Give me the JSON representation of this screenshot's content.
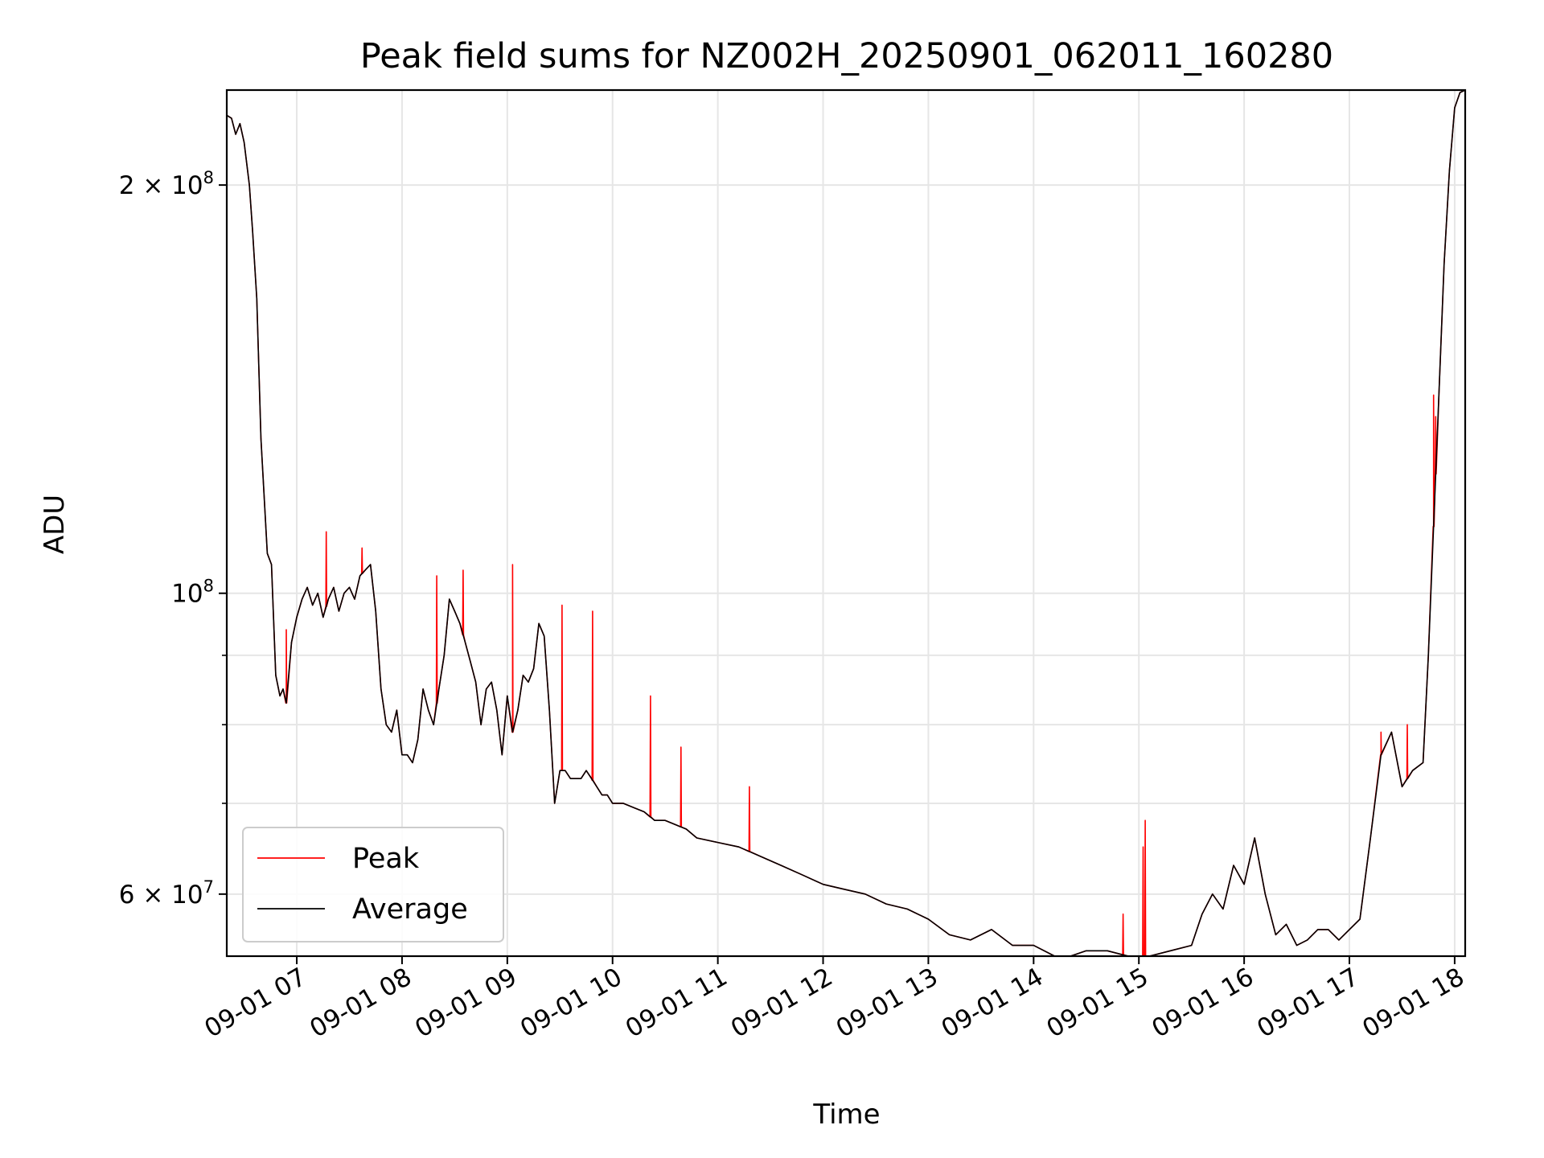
{
  "chart_data": {
    "type": "line",
    "title": "Peak field sums for NZ002H_20250901_062011_160280",
    "xlabel": "Time",
    "ylabel": "ADU",
    "yscale": "log",
    "xlim": [
      6.335,
      18.1
    ],
    "ylim": [
      54000000,
      235000000
    ],
    "grid": true,
    "x_tick_labels": [
      "09-01 07",
      "09-01 08",
      "09-01 09",
      "09-01 10",
      "09-01 11",
      "09-01 12",
      "09-01 13",
      "09-01 14",
      "09-01 15",
      "09-01 16",
      "09-01 17",
      "09-01 18"
    ],
    "x_tick_hours": [
      7,
      8,
      9,
      10,
      11,
      12,
      13,
      14,
      15,
      16,
      17,
      18
    ],
    "y_major_ticks": [
      {
        "value": 60000000,
        "mantissa": "6",
        "exponent": "7"
      },
      {
        "value": 100000000,
        "mantissa": "",
        "exponent": "8"
      },
      {
        "value": 200000000,
        "mantissa": "2",
        "exponent": "8"
      }
    ],
    "y_minor_ticks": [
      70000000,
      80000000,
      90000000
    ],
    "legend": {
      "position": "lower-left",
      "entries": [
        {
          "label": "Peak",
          "color": "#ff0000"
        },
        {
          "label": "Average",
          "color": "#000000"
        }
      ]
    },
    "series": [
      {
        "name": "Average",
        "color": "#000000",
        "x": [
          6.34,
          6.38,
          6.42,
          6.46,
          6.5,
          6.55,
          6.58,
          6.62,
          6.66,
          6.72,
          6.76,
          6.8,
          6.84,
          6.87,
          6.9,
          6.95,
          7.0,
          7.05,
          7.1,
          7.15,
          7.2,
          7.25,
          7.3,
          7.35,
          7.4,
          7.45,
          7.5,
          7.55,
          7.6,
          7.65,
          7.7,
          7.75,
          7.8,
          7.85,
          7.9,
          7.95,
          8.0,
          8.05,
          8.1,
          8.15,
          8.2,
          8.25,
          8.3,
          8.35,
          8.4,
          8.45,
          8.5,
          8.55,
          8.6,
          8.65,
          8.7,
          8.75,
          8.8,
          8.85,
          8.9,
          8.95,
          9.0,
          9.05,
          9.1,
          9.15,
          9.2,
          9.25,
          9.3,
          9.35,
          9.4,
          9.45,
          9.5,
          9.55,
          9.6,
          9.65,
          9.7,
          9.75,
          9.8,
          9.85,
          9.9,
          9.95,
          10.0,
          10.1,
          10.2,
          10.3,
          10.4,
          10.5,
          10.6,
          10.7,
          10.8,
          11.0,
          11.2,
          11.4,
          11.6,
          11.8,
          12.0,
          12.2,
          12.4,
          12.6,
          12.8,
          13.0,
          13.2,
          13.4,
          13.6,
          13.8,
          14.0,
          14.2,
          14.35,
          14.5,
          14.7,
          14.9,
          15.1,
          15.3,
          15.5,
          15.6,
          15.7,
          15.8,
          15.9,
          16.0,
          16.1,
          16.2,
          16.3,
          16.4,
          16.5,
          16.6,
          16.7,
          16.8,
          16.9,
          17.0,
          17.1,
          17.2,
          17.3,
          17.4,
          17.5,
          17.6,
          17.7,
          17.75,
          17.8,
          17.85,
          17.9,
          17.95,
          18.0,
          18.05,
          18.1
        ],
        "y": [
          225000000,
          224000000,
          218000000,
          222000000,
          215000000,
          200000000,
          185000000,
          165000000,
          130000000,
          107000000,
          105000000,
          87000000,
          84000000,
          85000000,
          83000000,
          92000000,
          96000000,
          99000000,
          101000000,
          98000000,
          100000000,
          96000000,
          99000000,
          101000000,
          97000000,
          100000000,
          101000000,
          99000000,
          103000000,
          104000000,
          105000000,
          97000000,
          85000000,
          80000000,
          79000000,
          82000000,
          76000000,
          76000000,
          75000000,
          78000000,
          85000000,
          82000000,
          80000000,
          85000000,
          90000000,
          99000000,
          97000000,
          95000000,
          92000000,
          89000000,
          86000000,
          80000000,
          85000000,
          86000000,
          82000000,
          76000000,
          84000000,
          79000000,
          82000000,
          87000000,
          86000000,
          88000000,
          95000000,
          93000000,
          82000000,
          70000000,
          74000000,
          74000000,
          73000000,
          73000000,
          73000000,
          74000000,
          73000000,
          72000000,
          71000000,
          71000000,
          70000000,
          70000000,
          69500000,
          69000000,
          68000000,
          68000000,
          67500000,
          67000000,
          66000000,
          65500000,
          65000000,
          64000000,
          63000000,
          62000000,
          61000000,
          60500000,
          60000000,
          59000000,
          58500000,
          57500000,
          56000000,
          55500000,
          56500000,
          55000000,
          55000000,
          54000000,
          54000000,
          54500000,
          54500000,
          54000000,
          54000000,
          54500000,
          55000000,
          58000000,
          60000000,
          58500000,
          63000000,
          61000000,
          66000000,
          60000000,
          56000000,
          57000000,
          55000000,
          55500000,
          56500000,
          56500000,
          55500000,
          56500000,
          57500000,
          66000000,
          76000000,
          79000000,
          72000000,
          74000000,
          75000000,
          90000000,
          112000000,
          140000000,
          175000000,
          205000000,
          228000000,
          234000000,
          235000000
        ]
      },
      {
        "name": "Peak",
        "color": "#ff0000",
        "x": [
          6.9,
          7.28,
          7.62,
          8.33,
          8.58,
          9.05,
          9.52,
          9.81,
          10.36,
          10.65,
          11.3,
          14.85,
          15.04,
          15.06,
          17.3,
          17.55,
          17.8,
          17.82
        ],
        "y": [
          94000000,
          111000000,
          108000000,
          103000000,
          104000000,
          105000000,
          98000000,
          97000000,
          84000000,
          77000000,
          72000000,
          58000000,
          65000000,
          68000000,
          79000000,
          80000000,
          140000000,
          135000000
        ]
      }
    ]
  }
}
